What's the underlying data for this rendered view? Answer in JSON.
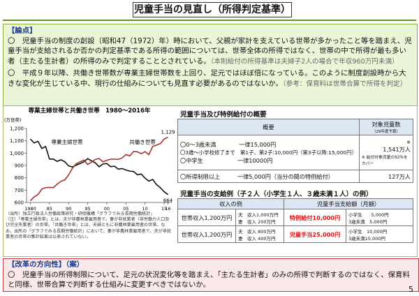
{
  "title": "児童手当の見直し（所得判定基準）",
  "page_number": "5",
  "issue": {
    "heading": "【論点】",
    "paragraphs": [
      {
        "text": "〇　児童手当の制度の創設（昭和47（1972）年）時において、父親が家計を支えている世帯が多かったこと等を踏まえ、児童手当が支給されるか否かの判定基準である所得の範囲については、世帯全体の所得ではなく、世帯の中で所得が最も多い者（主たる生計者）の所得のみで判定することとされている。",
        "note": "（本則給付の所得基準は夫婦子2人の場合で年収960万円未満）"
      },
      {
        "text": "〇　平成９年以降、共働き世帯数が専業主婦世帯数を上回り、足元ではほぼ倍になっている。このように制度創設時から大きな変化が生じている中、現行の仕組みについても見直す必要があるのではないか。",
        "note": "（参考：保育料は世帯合算で所得を判定）"
      }
    ]
  },
  "chart": {
    "type": "line",
    "title": "専業主婦世帯と共働き世帯　1980～2016年",
    "y_unit": "(万世帯)",
    "x": [
      1980,
      1981,
      1982,
      1983,
      1984,
      1985,
      1986,
      1987,
      1988,
      1989,
      1990,
      1991,
      1992,
      1993,
      1994,
      1995,
      1996,
      1997,
      1998,
      1999,
      2000,
      2001,
      2002,
      2003,
      2004,
      2005,
      2006,
      2007,
      2008,
      2009,
      2010,
      2011,
      2012,
      2013,
      2014,
      2015,
      2016
    ],
    "series": [
      {
        "name": "専業主婦世帯",
        "color": "#111111",
        "end_label": "664",
        "values": [
          1114,
          1082,
          1096,
          1038,
          1054,
          952,
          952,
          933,
          946,
          930,
          897,
          888,
          903,
          915,
          930,
          955,
          937,
          921,
          889,
          912,
          916,
          890,
          894,
          870,
          875,
          863,
          854,
          851,
          825,
          831,
          797,
          773,
          787,
          745,
          720,
          687,
          664
        ]
      },
      {
        "name": "共働き世帯",
        "color": "#a3342c",
        "end_label": "1,129",
        "values": [
          614,
          645,
          664,
          708,
          721,
          722,
          720,
          748,
          771,
          783,
          823,
          877,
          914,
          929,
          943,
          908,
          927,
          949,
          956,
          929,
          942,
          951,
          951,
          949,
          961,
          988,
          977,
          1013,
          1011,
          995,
          1012,
          987,
          1054,
          1065,
          1077,
          1114,
          1129
        ]
      }
    ],
    "xlim": [
      1979,
      2017
    ],
    "ylim": [
      600,
      1200
    ],
    "xticks": [
      {
        "value": 1980,
        "label": "1980"
      },
      {
        "value": 1985,
        "label": "85"
      },
      {
        "value": 1990,
        "label": "90"
      },
      {
        "value": 1995,
        "label": "95"
      },
      {
        "value": 2000,
        "label": "00"
      },
      {
        "value": 2005,
        "label": "05"
      },
      {
        "value": 2010,
        "label": "10"
      },
      {
        "value": 2015,
        "label": "15"
      },
      {
        "value": 2016,
        "label": "16"
      }
    ],
    "yticks": [
      600,
      700,
      800,
      900,
      {
        "value": 1000,
        "label": "1,000"
      },
      {
        "value": 1100,
        "label": "1,100"
      },
      {
        "value": 1200,
        "label": "1,200"
      }
    ],
    "source": "（出所）独立行政法人労働政策研究・研修機構「グラフでみる長期労働統計」",
    "note": "（注）「専業主婦世帯」とは、夫が非農林業雇用者で、妻が非就業者（非労働力人口及び完全失業者）の世帯。「共働き世帯」とは、夫婦ともに非農林業雇用者の世帯。なお、出所の『グラフでみる長期労働統計』において、妻が非農林業雇用者で、夫が非就業者の世帯の集計結果は公表されていない。"
  },
  "overview": {
    "heading": "児童手当及び特例給付の概要",
    "columns": [
      "概要",
      "対象児童数"
    ],
    "column_note": "（29年度予算）",
    "rows": [
      {
        "items": [
          "〇0～3歳未満　　　　一律15,000円",
          "〇3歳～小学校修了まで　第1子、第2子:10,000円（第3子以降:15,000円）",
          "〇中学生　　　　　　一律10000円"
        ],
        "mark": "※",
        "count": "1,541万人",
        "count_note": "※ 給付対象児童の92%をカバー"
      },
      {
        "items": [
          "〇所得制限以上　　　一律5,000円（当分の間の特例給付）"
        ],
        "count": "127万人"
      }
    ]
  },
  "example": {
    "heading": "児童手当の支給例（子２人（小学生１人、３歳未満１人）の例）",
    "columns": [
      "収入の例",
      "児童手当支給額（月額）"
    ],
    "rows": [
      {
        "household": "世帯収入1,200万円",
        "incomes": [
          "夫　収入1,000万円",
          "妻　収入 200万円"
        ],
        "amount": "特例給付10,000円",
        "breakdown": [
          "小学生　　5,000円",
          "3歳未満　5,000円"
        ]
      },
      {
        "household": "世帯収入1,200万円",
        "incomes": [
          "夫　収入 800万円",
          "妻　収入 400万円"
        ],
        "amount": "児童手当25,000円",
        "breakdown": [
          "小学生　10,000円",
          "3歳未満15,000円"
        ]
      }
    ]
  },
  "reform": {
    "heading": "【改革の方向性】（案）",
    "text": "〇　児童手当の所得制限について、足元の状況変化等を踏まえ、「主たる生計者」のみの所得で判断するのではなく、保育料と同様、世帯合算で判断する仕組みに変更すべきではないか。"
  }
}
